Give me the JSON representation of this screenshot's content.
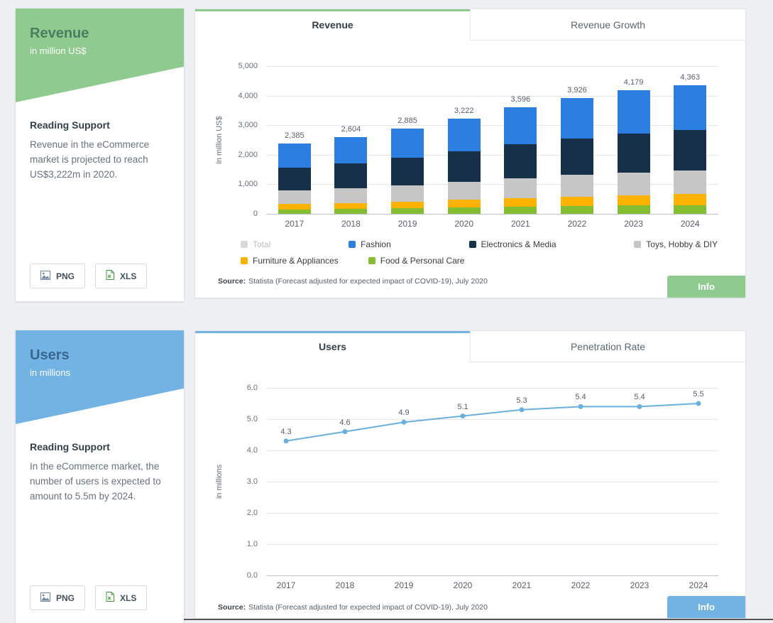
{
  "sections": [
    {
      "accent": "#8fca8f",
      "card": {
        "title": "Revenue",
        "subtitle": "in million US$",
        "reading_title": "Reading Support",
        "reading_text": "Revenue in the eCommerce market is projected to reach US$3,222m in 2020.",
        "png_label": "PNG",
        "xls_label": "XLS"
      },
      "tabs": [
        {
          "label": "Revenue",
          "active": true
        },
        {
          "label": "Revenue Growth",
          "active": false
        }
      ],
      "source_label": "Source:",
      "source_text": "Statista (Forecast adjusted for expected impact of COVID-19), July 2020",
      "info_label": "Info"
    },
    {
      "accent": "#72b3e3",
      "card": {
        "title": "Users",
        "subtitle": "in millions",
        "reading_title": "Reading Support",
        "reading_text": "In the eCommerce market, the number of users is expected to amount to 5.5m by 2024.",
        "png_label": "PNG",
        "xls_label": "XLS"
      },
      "tabs": [
        {
          "label": "Users",
          "active": true
        },
        {
          "label": "Penetration Rate",
          "active": false
        }
      ],
      "source_label": "Source:",
      "source_text": "Statista (Forecast adjusted for expected impact of COVID-19), July 2020",
      "info_label": "Info"
    }
  ],
  "chart_data": [
    {
      "type": "bar",
      "stacked": true,
      "title": "Revenue",
      "ylabel": "in million US$",
      "ylim": [
        0,
        5000
      ],
      "grid": true,
      "yticks": [
        {
          "value": 5000,
          "label": "5,000"
        },
        {
          "value": 4000,
          "label": "4,000"
        },
        {
          "value": 3000,
          "label": "3,000"
        },
        {
          "value": 2000,
          "label": "2,000"
        },
        {
          "value": 1000,
          "label": "1,000"
        },
        {
          "value": 0,
          "label": "0"
        }
      ],
      "categories": [
        "2017",
        "2018",
        "2019",
        "2020",
        "2021",
        "2022",
        "2023",
        "2024"
      ],
      "totals": [
        2385,
        2604,
        2885,
        3222,
        3596,
        3926,
        4179,
        4363
      ],
      "total_labels": [
        "2,385",
        "2,604",
        "2,885",
        "3,222",
        "3,596",
        "3,926",
        "4,179",
        "4,363"
      ],
      "series": [
        {
          "name": "Food & Personal Care",
          "color": "#84bd32",
          "values": [
            150,
            165,
            185,
            210,
            235,
            260,
            280,
            295
          ]
        },
        {
          "name": "Furniture & Appliances",
          "color": "#ffb300",
          "values": [
            185,
            205,
            230,
            262,
            296,
            326,
            349,
            368
          ]
        },
        {
          "name": "Toys, Hobby & DIY",
          "color": "#c6c6c6",
          "values": [
            450,
            489,
            540,
            600,
            665,
            725,
            770,
            800
          ]
        },
        {
          "name": "Electronics & Media",
          "color": "#17304a",
          "values": [
            780,
            846,
            935,
            1038,
            1149,
            1239,
            1311,
            1362
          ]
        },
        {
          "name": "Fashion",
          "color": "#2c7fe0",
          "values": [
            820,
            899,
            995,
            1112,
            1251,
            1376,
            1469,
            1538
          ]
        }
      ],
      "legend": [
        {
          "label": "Total",
          "color": "#d9d9d9",
          "disabled": true
        },
        {
          "label": "Fashion",
          "color": "#2c7fe0",
          "disabled": false
        },
        {
          "label": "Electronics & Media",
          "color": "#17304a",
          "disabled": false
        },
        {
          "label": "Toys, Hobby & DIY",
          "color": "#c6c6c6",
          "disabled": false
        },
        {
          "label": "Furniture & Appliances",
          "color": "#ffb300",
          "disabled": false
        },
        {
          "label": "Food & Personal Care",
          "color": "#84bd32",
          "disabled": false
        }
      ],
      "legend_position": "bottom",
      "source": "Statista (Forecast adjusted for expected impact of COVID-19), July 2020"
    },
    {
      "type": "line",
      "title": "Users",
      "ylabel": "in millions",
      "ylim": [
        0,
        6
      ],
      "grid": true,
      "color": "#6ab0de",
      "yticks": [
        {
          "value": 6,
          "label": "6.0"
        },
        {
          "value": 5,
          "label": "5.0"
        },
        {
          "value": 4,
          "label": "4.0"
        },
        {
          "value": 3,
          "label": "3.0"
        },
        {
          "value": 2,
          "label": "2.0"
        },
        {
          "value": 1,
          "label": "1.0"
        },
        {
          "value": 0,
          "label": "0.0"
        }
      ],
      "categories": [
        "2017",
        "2018",
        "2019",
        "2020",
        "2021",
        "2022",
        "2023",
        "2024"
      ],
      "values": [
        4.3,
        4.6,
        4.9,
        5.1,
        5.3,
        5.4,
        5.4,
        5.5
      ],
      "point_labels": [
        "4.3",
        "4.6",
        "4.9",
        "5.1",
        "5.3",
        "5.4",
        "5.4",
        "5.5"
      ],
      "source": "Statista (Forecast adjusted for expected impact of COVID-19), July 2020"
    }
  ]
}
